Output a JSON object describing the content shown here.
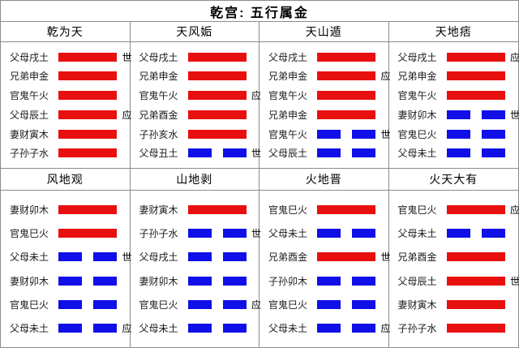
{
  "title": "乾宫: 五行属金",
  "colors": {
    "yang_red": "#e8100e",
    "yin_blue": "#100fe8",
    "border_gray": "#8c8c8c",
    "background": "#ffffff"
  },
  "markers": {
    "shi": "世",
    "ying": "应"
  },
  "sections": [
    {
      "hexagrams": [
        {
          "name": "乾为天",
          "lines": [
            {
              "label": "父母戌土",
              "type": "yang",
              "marker": "世"
            },
            {
              "label": "兄弟申金",
              "type": "yang",
              "marker": ""
            },
            {
              "label": "官鬼午火",
              "type": "yang",
              "marker": ""
            },
            {
              "label": "父母辰土",
              "type": "yang",
              "marker": "应"
            },
            {
              "label": "妻财寅木",
              "type": "yang",
              "marker": ""
            },
            {
              "label": "子孙子水",
              "type": "yang",
              "marker": ""
            }
          ]
        },
        {
          "name": "天风姤",
          "lines": [
            {
              "label": "父母戌土",
              "type": "yang",
              "marker": ""
            },
            {
              "label": "兄弟申金",
              "type": "yang",
              "marker": ""
            },
            {
              "label": "官鬼午火",
              "type": "yang",
              "marker": "应"
            },
            {
              "label": "兄弟酉金",
              "type": "yang",
              "marker": ""
            },
            {
              "label": "子孙亥水",
              "type": "yang",
              "marker": ""
            },
            {
              "label": "父母丑土",
              "type": "yin",
              "marker": "世"
            }
          ]
        },
        {
          "name": "天山遁",
          "lines": [
            {
              "label": "父母戌土",
              "type": "yang",
              "marker": ""
            },
            {
              "label": "兄弟申金",
              "type": "yang",
              "marker": "应"
            },
            {
              "label": "官鬼午火",
              "type": "yang",
              "marker": ""
            },
            {
              "label": "兄弟申金",
              "type": "yang",
              "marker": ""
            },
            {
              "label": "官鬼午火",
              "type": "yin",
              "marker": "世"
            },
            {
              "label": "父母辰土",
              "type": "yin",
              "marker": ""
            }
          ]
        },
        {
          "name": "天地痞",
          "lines": [
            {
              "label": "父母戌土",
              "type": "yang",
              "marker": "应"
            },
            {
              "label": "兄弟申金",
              "type": "yang",
              "marker": ""
            },
            {
              "label": "官鬼午火",
              "type": "yang",
              "marker": ""
            },
            {
              "label": "妻财卯木",
              "type": "yin",
              "marker": "世"
            },
            {
              "label": "官鬼巳火",
              "type": "yin",
              "marker": ""
            },
            {
              "label": "父母未土",
              "type": "yin",
              "marker": ""
            }
          ]
        }
      ]
    },
    {
      "hexagrams": [
        {
          "name": "风地观",
          "lines": [
            {
              "label": "妻财卯木",
              "type": "yang",
              "marker": ""
            },
            {
              "label": "官鬼巳火",
              "type": "yang",
              "marker": ""
            },
            {
              "label": "父母未土",
              "type": "yin",
              "marker": "世"
            },
            {
              "label": "妻财卯木",
              "type": "yin",
              "marker": ""
            },
            {
              "label": "官鬼巳火",
              "type": "yin",
              "marker": ""
            },
            {
              "label": "父母未土",
              "type": "yin",
              "marker": "应"
            }
          ]
        },
        {
          "name": "山地剥",
          "lines": [
            {
              "label": "妻财寅木",
              "type": "yang",
              "marker": ""
            },
            {
              "label": "子孙子水",
              "type": "yin",
              "marker": "世"
            },
            {
              "label": "父母戌土",
              "type": "yin",
              "marker": ""
            },
            {
              "label": "妻财卯木",
              "type": "yin",
              "marker": ""
            },
            {
              "label": "官鬼巳火",
              "type": "yin",
              "marker": "应"
            },
            {
              "label": "父母未土",
              "type": "yin",
              "marker": ""
            }
          ]
        },
        {
          "name": "火地晋",
          "lines": [
            {
              "label": "官鬼巳火",
              "type": "yang",
              "marker": ""
            },
            {
              "label": "父母未土",
              "type": "yin",
              "marker": ""
            },
            {
              "label": "兄弟酉金",
              "type": "yang",
              "marker": "世"
            },
            {
              "label": "子孙卯木",
              "type": "yin",
              "marker": ""
            },
            {
              "label": "官鬼巳火",
              "type": "yin",
              "marker": ""
            },
            {
              "label": "父母未土",
              "type": "yin",
              "marker": "应"
            }
          ]
        },
        {
          "name": "火天大有",
          "lines": [
            {
              "label": "官鬼巳火",
              "type": "yang",
              "marker": "应"
            },
            {
              "label": "父母未土",
              "type": "yin",
              "marker": ""
            },
            {
              "label": "兄弟酉金",
              "type": "yang",
              "marker": ""
            },
            {
              "label": "父母辰土",
              "type": "yang",
              "marker": "世"
            },
            {
              "label": "妻财寅木",
              "type": "yang",
              "marker": ""
            },
            {
              "label": "子孙子水",
              "type": "yang",
              "marker": ""
            }
          ]
        }
      ]
    }
  ]
}
